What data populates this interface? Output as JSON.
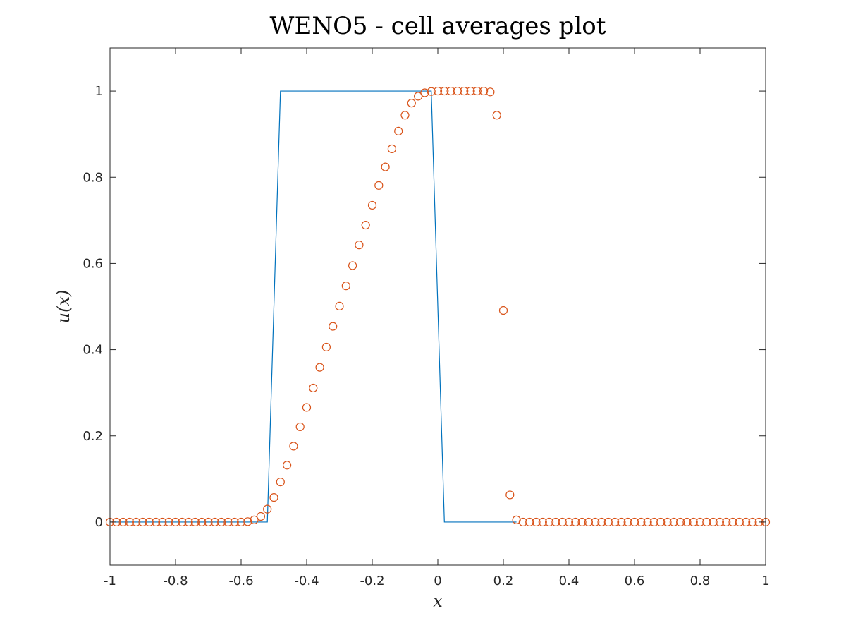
{
  "chart_data": {
    "type": "line",
    "title": "WENO5 - cell averages plot",
    "xlabel": "x",
    "ylabel": "u(x)",
    "xlim": [
      -1,
      1
    ],
    "ylim": [
      -0.1,
      1.1
    ],
    "xticks": [
      -1,
      -0.8,
      -0.6,
      -0.4,
      -0.2,
      0,
      0.2,
      0.4,
      0.6,
      0.8,
      1
    ],
    "xtick_labels": [
      "-1",
      "-0.8",
      "-0.6",
      "-0.4",
      "-0.2",
      "0",
      "0.2",
      "0.4",
      "0.6",
      "0.8",
      "1"
    ],
    "yticks": [
      0,
      0.2,
      0.4,
      0.6,
      0.8,
      1
    ],
    "ytick_labels": [
      "0",
      "0.2",
      "0.4",
      "0.6",
      "0.8",
      "1"
    ],
    "grid": false,
    "box": true,
    "series": [
      {
        "style": "line",
        "color": "#0072BD",
        "x": [
          -1,
          -0.52,
          -0.48,
          -0.02,
          0.02,
          0.24
        ],
        "y": [
          0,
          0,
          1,
          1,
          0,
          0
        ]
      },
      {
        "style": "circle-markers",
        "color": "#D95319",
        "x": [
          -1,
          -0.98,
          -0.96,
          -0.94,
          -0.92,
          -0.9,
          -0.88,
          -0.86,
          -0.84,
          -0.82,
          -0.8,
          -0.78,
          -0.76,
          -0.74,
          -0.72,
          -0.7,
          -0.68,
          -0.66,
          -0.64,
          -0.62,
          -0.6,
          -0.58,
          -0.56,
          -0.54,
          -0.52,
          -0.5,
          -0.48,
          -0.46,
          -0.44,
          -0.42,
          -0.4,
          -0.38,
          -0.36,
          -0.34,
          -0.32,
          -0.3,
          -0.28,
          -0.26,
          -0.24,
          -0.22,
          -0.2,
          -0.18,
          -0.16,
          -0.14,
          -0.12,
          -0.1,
          -0.08,
          -0.06,
          -0.04,
          -0.02,
          0,
          0.02,
          0.04,
          0.06,
          0.08,
          0.1,
          0.12,
          0.14,
          0.16,
          0.18,
          0.2,
          0.22,
          0.24,
          0.26,
          0.28,
          0.3,
          0.32,
          0.34,
          0.36,
          0.38,
          0.4,
          0.42,
          0.44,
          0.46,
          0.48,
          0.5,
          0.52,
          0.54,
          0.56,
          0.58,
          0.6,
          0.62,
          0.64,
          0.66,
          0.68,
          0.7,
          0.72,
          0.74,
          0.76,
          0.78,
          0.8,
          0.82,
          0.84,
          0.86,
          0.88,
          0.9,
          0.92,
          0.94,
          0.96,
          0.98,
          1
        ],
        "y": [
          0,
          0,
          0,
          0,
          0,
          0,
          0,
          0,
          0,
          0,
          0,
          0,
          0,
          0,
          0,
          0,
          0,
          0,
          0,
          0,
          0,
          0.001,
          0.005,
          0.013,
          0.03,
          0.057,
          0.093,
          0.132,
          0.176,
          0.221,
          0.266,
          0.311,
          0.359,
          0.406,
          0.454,
          0.501,
          0.548,
          0.595,
          0.643,
          0.689,
          0.735,
          0.781,
          0.824,
          0.866,
          0.907,
          0.944,
          0.972,
          0.988,
          0.996,
          0.999,
          1,
          1,
          1,
          1,
          1,
          1,
          1,
          1,
          0.998,
          0.944,
          0.491,
          0.063,
          0.005,
          0,
          0,
          0,
          0,
          0,
          0,
          0,
          0,
          0,
          0,
          0,
          0,
          0,
          0,
          0,
          0,
          0,
          0,
          0,
          0,
          0,
          0,
          0,
          0,
          0,
          0,
          0,
          0,
          0,
          0,
          0,
          0,
          0,
          0,
          0,
          0,
          0,
          0
        ]
      }
    ]
  }
}
